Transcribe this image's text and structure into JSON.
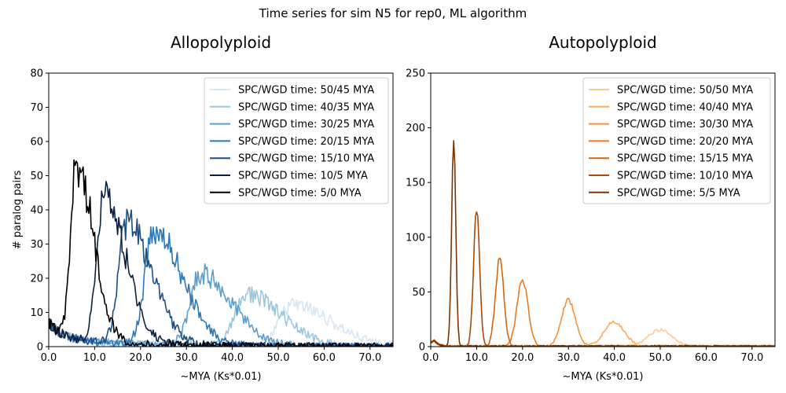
{
  "suptitle": "Time series for sim N5 for rep0, ML algorithm",
  "chart_data": [
    {
      "type": "line",
      "title": "Allopolyploid",
      "xlabel": "~MYA (Ks*0.01)",
      "ylabel": "# paralog pairs",
      "xlim": [
        0,
        75
      ],
      "ylim": [
        0,
        80
      ],
      "xticks": [
        0,
        10,
        20,
        30,
        40,
        50,
        60,
        70
      ],
      "xtick_labels": [
        "0.0",
        "10.0",
        "20.0",
        "30.0",
        "40.0",
        "50.0",
        "60.0",
        "70.0"
      ],
      "yticks": [
        0,
        10,
        20,
        30,
        40,
        50,
        60,
        70,
        80
      ],
      "ytick_labels": [
        "0",
        "10",
        "20",
        "30",
        "40",
        "50",
        "60",
        "70",
        "80"
      ],
      "legend_position": "upper right",
      "series": [
        {
          "name": "SPC/WGD time: 50/45 MYA",
          "color": "#d7e6f4",
          "peak_x": 53,
          "peak_y": 12,
          "width": 5.0,
          "spc_x": 50
        },
        {
          "name": "SPC/WGD time: 40/35 MYA",
          "color": "#9ac7e0",
          "peak_x": 43,
          "peak_y": 15,
          "width": 4.5,
          "spc_x": 40
        },
        {
          "name": "SPC/WGD time: 30/25 MYA",
          "color": "#5a9fcf",
          "peak_x": 33,
          "peak_y": 21,
          "width": 4.0,
          "spc_x": 30
        },
        {
          "name": "SPC/WGD time: 20/15 MYA",
          "color": "#2e78b5",
          "peak_x": 23,
          "peak_y": 33,
          "width": 3.6,
          "spc_x": 20
        },
        {
          "name": "SPC/WGD time: 15/10 MYA",
          "color": "#1e4f82",
          "peak_x": 17,
          "peak_y": 35,
          "width": 3.2,
          "spc_x": 15
        },
        {
          "name": "SPC/WGD time: 10/5 MYA",
          "color": "#0e2240",
          "peak_x": 12,
          "peak_y": 42,
          "width": 2.8,
          "spc_x": 10
        },
        {
          "name": "SPC/WGD time: 5/0 MYA",
          "color": "#000000",
          "peak_x": 6,
          "peak_y": 51,
          "width": 2.2,
          "spc_x": 5
        }
      ]
    },
    {
      "type": "line",
      "title": "Autopolyploid",
      "xlabel": "~MYA (Ks*0.01)",
      "ylabel": "",
      "xlim": [
        0,
        75
      ],
      "ylim": [
        0,
        250
      ],
      "xticks": [
        0,
        10,
        20,
        30,
        40,
        50,
        60,
        70
      ],
      "xtick_labels": [
        "0.0",
        "10.0",
        "20.0",
        "30.0",
        "40.0",
        "50.0",
        "60.0",
        "70.0"
      ],
      "yticks": [
        0,
        50,
        100,
        150,
        200,
        250
      ],
      "ytick_labels": [
        "0",
        "50",
        "100",
        "150",
        "200",
        "250"
      ],
      "legend_position": "upper right",
      "series": [
        {
          "name": "SPC/WGD time: 50/50 MYA",
          "color": "#fdc98f",
          "peak_x": 50,
          "peak_y": 15,
          "width": 2.6
        },
        {
          "name": "SPC/WGD time: 40/40 MYA",
          "color": "#fdac5a",
          "peak_x": 40,
          "peak_y": 22,
          "width": 2.2
        },
        {
          "name": "SPC/WGD time: 30/30 MYA",
          "color": "#f8913a",
          "peak_x": 30,
          "peak_y": 42,
          "width": 1.5
        },
        {
          "name": "SPC/WGD time: 20/20 MYA",
          "color": "#ec7a1c",
          "peak_x": 20,
          "peak_y": 60,
          "width": 1.2
        },
        {
          "name": "SPC/WGD time: 15/15 MYA",
          "color": "#d4640d",
          "peak_x": 15,
          "peak_y": 80,
          "width": 0.9
        },
        {
          "name": "SPC/WGD time: 10/10 MYA",
          "color": "#a94a06",
          "peak_x": 10,
          "peak_y": 124,
          "width": 0.65
        },
        {
          "name": "SPC/WGD time: 5/5 MYA",
          "color": "#7a3503",
          "peak_x": 5,
          "peak_y": 187,
          "width": 0.45
        }
      ]
    }
  ]
}
